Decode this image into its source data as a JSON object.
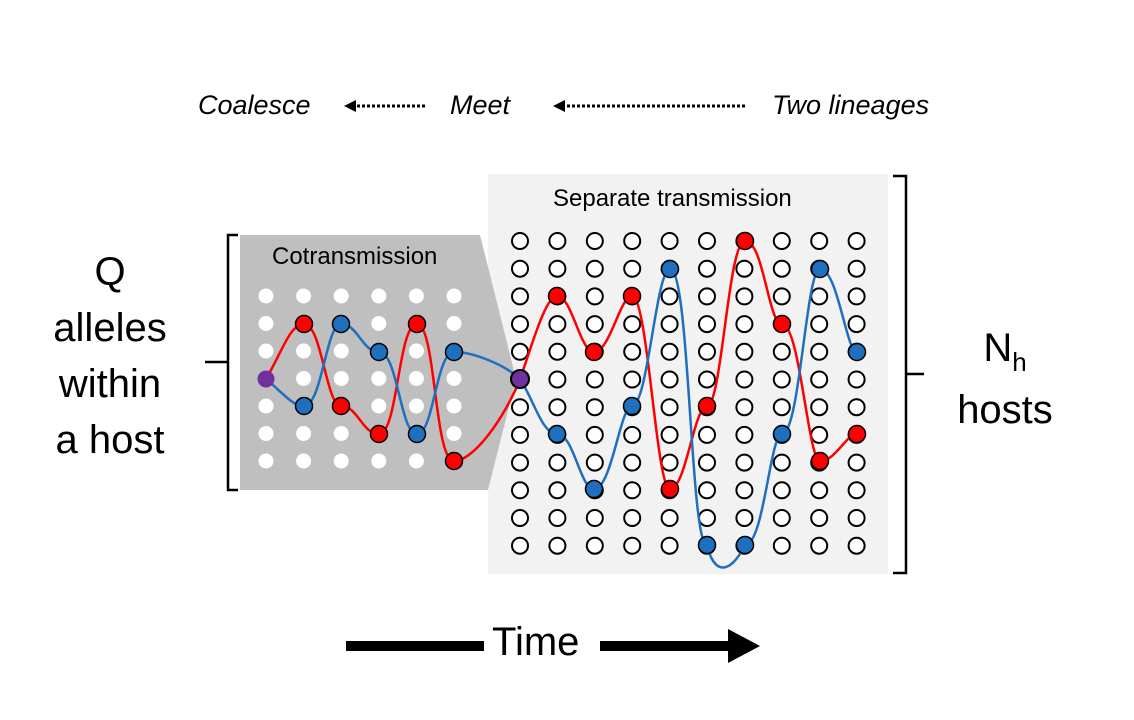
{
  "flow": {
    "coalesce": "Coalesce",
    "meet": "Meet",
    "two_lineages": "Two lineages"
  },
  "left_label": {
    "lines": [
      "Q",
      "alleles",
      "within",
      "a host"
    ]
  },
  "right_label": {
    "main": "N",
    "subscript": "h",
    "second": "hosts"
  },
  "cotransmission": {
    "title": "Cotransmission",
    "columns": 6,
    "rows": 7
  },
  "separate": {
    "title": "Separate transmission",
    "columns": 10,
    "rows": 12
  },
  "time_label": "Time",
  "colors": {
    "red": "#ff0000",
    "blue": "#1f6fbf",
    "purple": "#7030a0",
    "cotransmission_bg": "#bfbfbf",
    "separate_bg": "#f2f2f2"
  }
}
